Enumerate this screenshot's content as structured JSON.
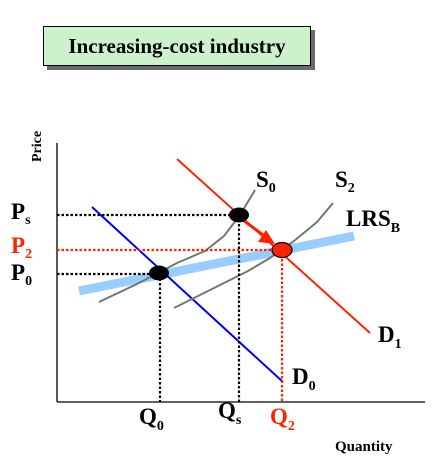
{
  "title": "Increasing-cost industry",
  "axes": {
    "x_label": "Quantity",
    "y_label": "Price"
  },
  "price_labels": {
    "ps": {
      "main": "P",
      "sub": "s"
    },
    "p2": {
      "main": "P",
      "sub": "2"
    },
    "p0": {
      "main": "P",
      "sub": "0"
    }
  },
  "quantity_labels": {
    "q0": {
      "main": "Q",
      "sub": "0"
    },
    "qs": {
      "main": "Q",
      "sub": "s"
    },
    "q2": {
      "main": "Q",
      "sub": "2"
    }
  },
  "curve_labels": {
    "s0": {
      "main": "S",
      "sub": "0"
    },
    "s2": {
      "main": "S",
      "sub": "2"
    },
    "lrs": {
      "main": "LRS",
      "sub": "B"
    },
    "d1": {
      "main": "D",
      "sub": "1"
    },
    "d0": {
      "main": "D",
      "sub": "0"
    }
  },
  "colors": {
    "demand_initial": "#0000ff",
    "demand_new": "#ff2200",
    "supply": "#707a70",
    "long_run_supply": "#99ccff",
    "highlight": "#ff2200",
    "title_background": "#ccf2cc"
  }
}
